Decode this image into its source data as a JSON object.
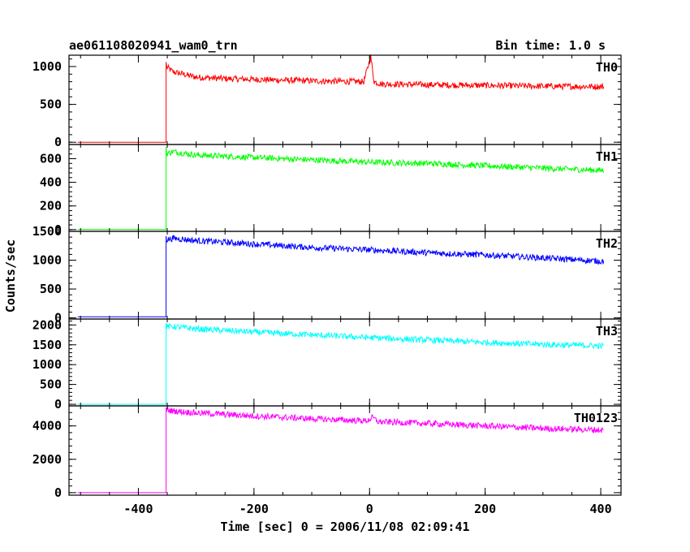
{
  "title_left": "ae061108020941_wam0_trn",
  "title_right": "Bin time: 1.0 s",
  "xlabel": "Time [sec] 0 = 2006/11/08 02:09:41",
  "ylabel": "Counts/sec",
  "chart_data": {
    "type": "line",
    "title": "ae061108020941_wam0_trn",
    "subtitle": "Bin time: 1.0 s",
    "xlabel": "Time [sec] 0 = 2006/11/08 02:09:41",
    "ylabel": "Counts/sec",
    "xlim": [
      -520,
      435
    ],
    "x_ticks": [
      -400,
      -200,
      0,
      200,
      400
    ],
    "grid": false,
    "panels": [
      {
        "name": "TH0",
        "color": "#ff0000",
        "ylim": [
          -30,
          1150
        ],
        "y_ticks": [
          0,
          500,
          1000
        ],
        "onset_x": -352,
        "baseline": 0,
        "peak": 1060,
        "points": [
          [
            -352,
            1000
          ],
          [
            -340,
            930
          ],
          [
            -300,
            860
          ],
          [
            -250,
            840
          ],
          [
            -200,
            830
          ],
          [
            -100,
            810
          ],
          [
            -10,
            800
          ],
          [
            2,
            1130
          ],
          [
            8,
            800
          ],
          [
            20,
            770
          ],
          [
            100,
            760
          ],
          [
            200,
            750
          ],
          [
            300,
            740
          ],
          [
            405,
            735
          ]
        ]
      },
      {
        "name": "TH1",
        "color": "#00ff00",
        "ylim": [
          -15,
          720
        ],
        "y_ticks": [
          0,
          200,
          400,
          600
        ],
        "onset_x": -352,
        "baseline": 0,
        "peak": 700,
        "points": [
          [
            -352,
            640
          ],
          [
            -340,
            660
          ],
          [
            -300,
            630
          ],
          [
            -200,
            610
          ],
          [
            -100,
            590
          ],
          [
            0,
            570
          ],
          [
            100,
            560
          ],
          [
            200,
            540
          ],
          [
            300,
            520
          ],
          [
            405,
            500
          ]
        ]
      },
      {
        "name": "TH2",
        "color": "#0000ff",
        "ylim": [
          -20,
          1500
        ],
        "y_ticks": [
          0,
          500,
          1000,
          1500
        ],
        "onset_x": -352,
        "baseline": 20,
        "peak": 1420,
        "points": [
          [
            -352,
            1350
          ],
          [
            -340,
            1380
          ],
          [
            -300,
            1340
          ],
          [
            -200,
            1280
          ],
          [
            -100,
            1220
          ],
          [
            0,
            1180
          ],
          [
            100,
            1130
          ],
          [
            200,
            1090
          ],
          [
            300,
            1040
          ],
          [
            405,
            980
          ]
        ]
      },
      {
        "name": "TH3",
        "color": "#00ffff",
        "ylim": [
          -40,
          2150
        ],
        "y_ticks": [
          0,
          500,
          1000,
          1500,
          2000
        ],
        "onset_x": -352,
        "baseline": 0,
        "peak": 2050,
        "points": [
          [
            -352,
            1950
          ],
          [
            -340,
            1960
          ],
          [
            -300,
            1900
          ],
          [
            -200,
            1820
          ],
          [
            -100,
            1750
          ],
          [
            0,
            1680
          ],
          [
            100,
            1620
          ],
          [
            200,
            1560
          ],
          [
            300,
            1510
          ],
          [
            405,
            1470
          ]
        ]
      },
      {
        "name": "TH0123",
        "color": "#ff00ff",
        "ylim": [
          -150,
          5200
        ],
        "y_ticks": [
          0,
          2000,
          4000
        ],
        "onset_x": -352,
        "baseline": 0,
        "peak": 5100,
        "points": [
          [
            -352,
            4950
          ],
          [
            -340,
            4900
          ],
          [
            -300,
            4780
          ],
          [
            -200,
            4600
          ],
          [
            -100,
            4430
          ],
          [
            -5,
            4300
          ],
          [
            5,
            4500
          ],
          [
            15,
            4250
          ],
          [
            100,
            4150
          ],
          [
            200,
            4000
          ],
          [
            300,
            3850
          ],
          [
            405,
            3750
          ]
        ]
      }
    ]
  }
}
